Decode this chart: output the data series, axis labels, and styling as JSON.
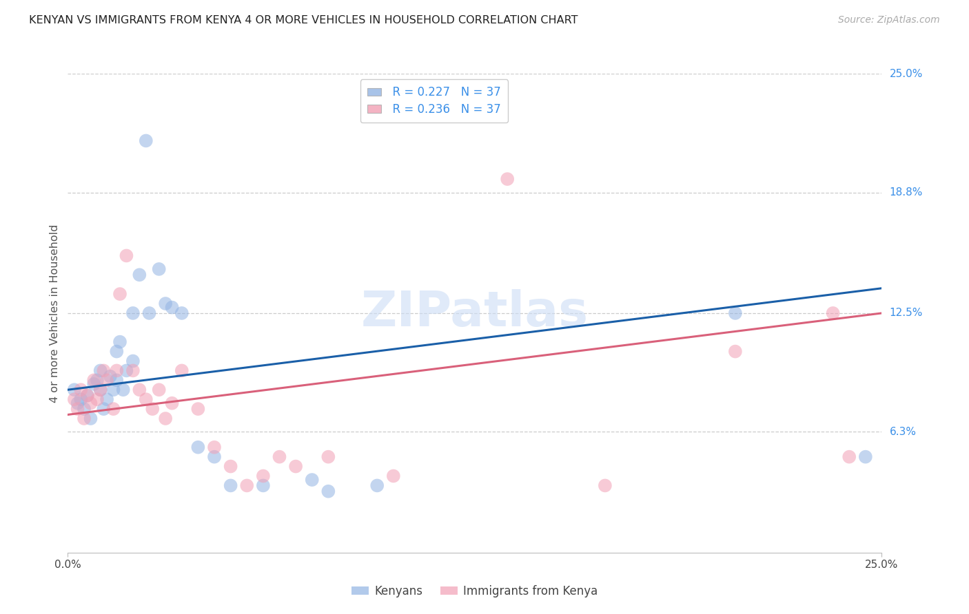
{
  "title": "KENYAN VS IMMIGRANTS FROM KENYA 4 OR MORE VEHICLES IN HOUSEHOLD CORRELATION CHART",
  "source": "Source: ZipAtlas.com",
  "ylabel": "4 or more Vehicles in Household",
  "ytick_labels": [
    "6.3%",
    "12.5%",
    "18.8%",
    "25.0%"
  ],
  "ytick_values": [
    6.3,
    12.5,
    18.8,
    25.0
  ],
  "xmin": 0.0,
  "xmax": 25.0,
  "ymin": 0.0,
  "ymax": 25.0,
  "legend_r1": "R = 0.227",
  "legend_n1": "N = 37",
  "legend_r2": "R = 0.236",
  "legend_n2": "N = 37",
  "blue_color": "#92b4e3",
  "pink_color": "#f2a0b5",
  "line_blue": "#1a5fa8",
  "line_pink": "#d9607a",
  "kenyans_x": [
    0.2,
    0.3,
    0.4,
    0.5,
    0.6,
    0.7,
    0.8,
    0.9,
    1.0,
    1.0,
    1.1,
    1.2,
    1.3,
    1.4,
    1.5,
    1.5,
    1.6,
    1.7,
    1.8,
    2.0,
    2.0,
    2.2,
    2.4,
    2.5,
    2.8,
    3.0,
    3.2,
    3.5,
    4.0,
    4.5,
    5.0,
    6.0,
    7.5,
    8.0,
    9.5,
    20.5,
    24.5
  ],
  "kenyans_y": [
    8.5,
    7.8,
    8.0,
    7.5,
    8.2,
    7.0,
    8.8,
    9.0,
    8.5,
    9.5,
    7.5,
    8.0,
    9.2,
    8.5,
    10.5,
    9.0,
    11.0,
    8.5,
    9.5,
    12.5,
    10.0,
    14.5,
    21.5,
    12.5,
    14.8,
    13.0,
    12.8,
    12.5,
    5.5,
    5.0,
    3.5,
    3.5,
    3.8,
    3.2,
    3.5,
    12.5,
    5.0
  ],
  "immigrants_x": [
    0.2,
    0.3,
    0.4,
    0.5,
    0.6,
    0.7,
    0.8,
    0.9,
    1.0,
    1.1,
    1.2,
    1.4,
    1.5,
    1.6,
    1.8,
    2.0,
    2.2,
    2.4,
    2.6,
    2.8,
    3.0,
    3.2,
    3.5,
    4.0,
    4.5,
    5.0,
    5.5,
    6.0,
    6.5,
    7.0,
    8.0,
    10.0,
    13.5,
    16.5,
    20.5,
    23.5,
    24.0
  ],
  "immigrants_y": [
    8.0,
    7.5,
    8.5,
    7.0,
    8.2,
    7.8,
    9.0,
    8.0,
    8.5,
    9.5,
    9.0,
    7.5,
    9.5,
    13.5,
    15.5,
    9.5,
    8.5,
    8.0,
    7.5,
    8.5,
    7.0,
    7.8,
    9.5,
    7.5,
    5.5,
    4.5,
    3.5,
    4.0,
    5.0,
    4.5,
    5.0,
    4.0,
    19.5,
    3.5,
    10.5,
    12.5,
    5.0
  ],
  "blue_line_x": [
    0,
    25
  ],
  "blue_line_y": [
    8.5,
    13.8
  ],
  "pink_line_x": [
    0,
    25
  ],
  "pink_line_y": [
    7.2,
    12.5
  ]
}
